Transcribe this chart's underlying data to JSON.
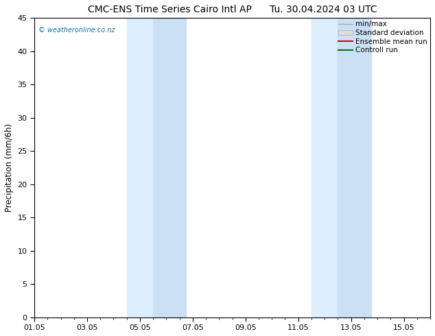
{
  "title_left": "CMC-ENS Time Series Cairo Intl AP",
  "title_right": "Tu. 30.04.2024 03 UTC",
  "ylabel": "Precipitation (mm/6h)",
  "ylim": [
    0,
    45
  ],
  "yticks": [
    0,
    5,
    10,
    15,
    20,
    25,
    30,
    35,
    40,
    45
  ],
  "xtick_labels": [
    "01.05",
    "03.05",
    "05.05",
    "07.05",
    "09.05",
    "11.05",
    "13.05",
    "15.05"
  ],
  "xtick_positions_days": [
    0,
    2,
    4,
    6,
    8,
    10,
    12,
    14
  ],
  "xlim": [
    0,
    15
  ],
  "shaded_bands": [
    {
      "x_start": 3.5,
      "x_end": 4.5,
      "color": "#ddeeff"
    },
    {
      "x_start": 4.5,
      "x_end": 5.75,
      "color": "#cce0f5"
    },
    {
      "x_start": 10.5,
      "x_end": 11.5,
      "color": "#ddeeff"
    },
    {
      "x_start": 11.5,
      "x_end": 12.75,
      "color": "#cce0f5"
    }
  ],
  "shade_color_light": "#ddeeff",
  "shade_color_main": "#cce0f5",
  "background_color": "#ffffff",
  "watermark": "© weatheronline.co.nz",
  "watermark_color": "#1a6faf",
  "legend_labels": [
    "min/max",
    "Standard deviation",
    "Ensemble mean run",
    "Controll run"
  ],
  "legend_colors": [
    "#aaaaaa",
    "#cccccc",
    "#dd0000",
    "#007700"
  ],
  "title_fontsize": 10,
  "axis_fontsize": 8.5,
  "tick_fontsize": 8,
  "legend_fontsize": 7.5
}
